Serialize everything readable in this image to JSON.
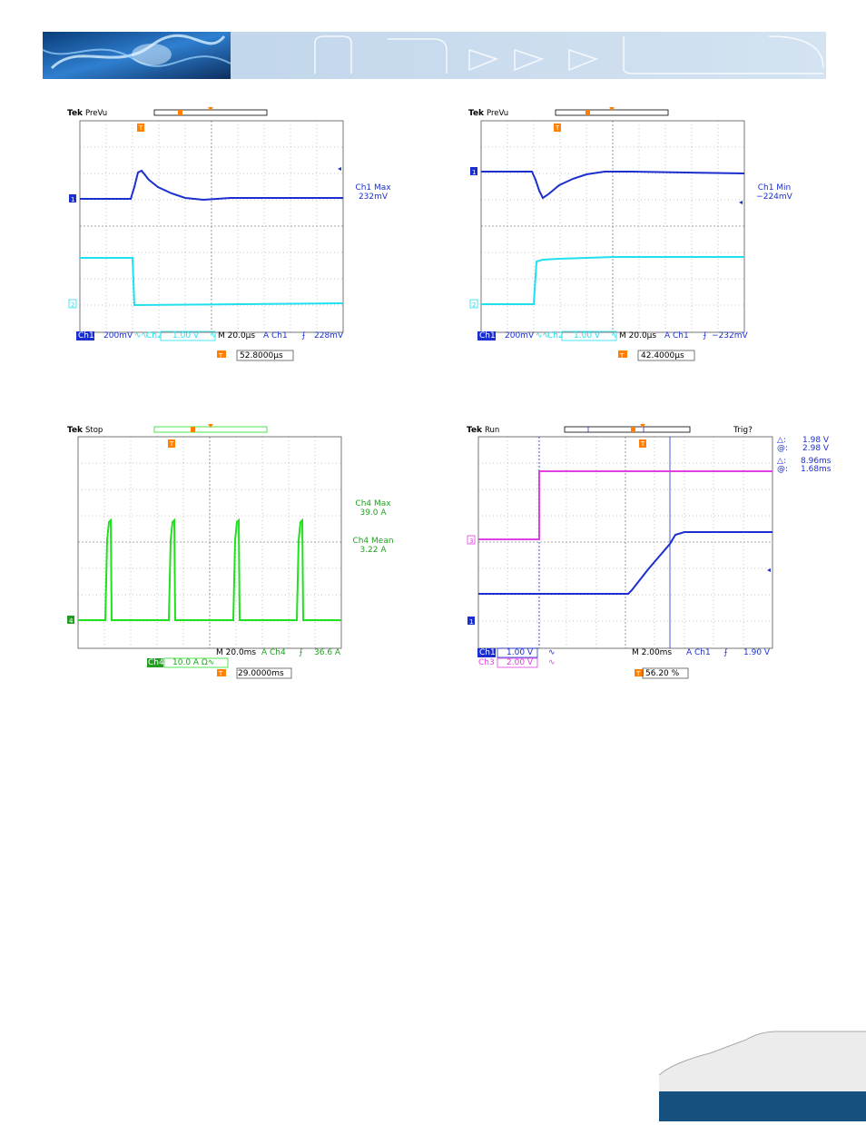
{
  "colors": {
    "ch1": "#1b2fd0",
    "ch2": "#20e0f0",
    "ch3": "#e040e0",
    "ch4": "#20e020",
    "trigger": "#ff7f00",
    "grid": "#555555",
    "footer_bar": "#15507f"
  },
  "scopes": [
    {
      "id": "scope1",
      "tek": "Tek",
      "mode": "PreVu",
      "trigger_marker": "T",
      "ch_marker_top": "1",
      "ch_marker_bottom": "2",
      "measurement": [
        "Ch1 Max",
        "232mV"
      ],
      "status": {
        "ch_a": "Ch1",
        "ch_a_scale": "200mV",
        "ch_a_coupling": "∿∿",
        "ch_b": "Ch2",
        "ch_b_scale": "1.00 V",
        "ch_b_coupling": "∿",
        "timebase": "M 20.0µs",
        "trig_src": "A  Ch1",
        "trig_slope": "⨍",
        "trig_level": "228mV"
      },
      "trigger_pos": "52.8000µs"
    },
    {
      "id": "scope2",
      "tek": "Tek",
      "mode": "PreVu",
      "trigger_marker": "T",
      "ch_marker_top": "1",
      "ch_marker_bottom": "2",
      "measurement": [
        "Ch1 Min",
        "−224mV"
      ],
      "status": {
        "ch_a": "Ch1",
        "ch_a_scale": "200mV",
        "ch_a_coupling": "∿∿",
        "ch_b": "Ch2",
        "ch_b_scale": "1.00 V",
        "ch_b_coupling": "∿",
        "timebase": "M 20.0µs",
        "trig_src": "A  Ch1",
        "trig_slope": "⨍",
        "trig_level": "−232mV"
      },
      "trigger_pos": "42.4000µs"
    },
    {
      "id": "scope3",
      "tek": "Tek",
      "mode": "Stop",
      "trigger_marker": "T",
      "ch_marker": "4",
      "measurements": [
        [
          "Ch4 Max",
          "39.0 A"
        ],
        [
          "Ch4 Mean",
          "3.22 A"
        ]
      ],
      "status": {
        "timebase": "M 20.0ms",
        "trig_src": "A  Ch4",
        "trig_slope": "⨍",
        "trig_level": "36.6 A",
        "ch_a": "Ch4",
        "ch_a_scale": "10.0 A Ω∿"
      },
      "trigger_pos": "29.0000ms"
    },
    {
      "id": "scope4",
      "tek": "Tek",
      "mode": "Run",
      "trig_status": "Trig?",
      "trigger_marker": "T",
      "ch_marker_ch3": "3",
      "ch_marker_ch1": "1",
      "cursors": [
        [
          "△:",
          "1.98 V"
        ],
        [
          "@:",
          "2.98 V"
        ],
        [
          "△:",
          "8.96ms"
        ],
        [
          "@:",
          "1.68ms"
        ]
      ],
      "status": {
        "ch_a": "Ch1",
        "ch_a_scale": "1.00 V",
        "ch_a_coupling": "∿",
        "ch_c": "Ch3",
        "ch_c_scale": "2.00 V",
        "ch_c_coupling": "∿",
        "timebase": "M 2.00ms",
        "trig_src": "A  Ch1",
        "trig_slope": "⨍",
        "trig_level": "1.90 V"
      },
      "trigger_pos": "56.20 %"
    }
  ]
}
